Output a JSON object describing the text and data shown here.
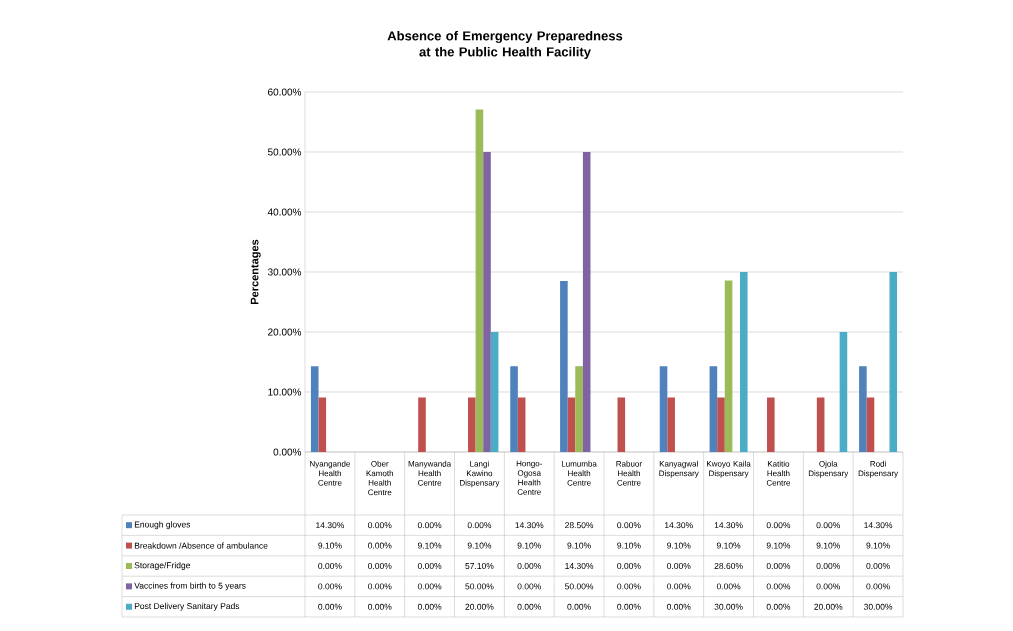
{
  "chart_data": {
    "type": "bar",
    "title": "Absence of Emergency Preparedness at the Public Health Facility",
    "ylabel": "Percentages",
    "categories": [
      "Nyangande Health Centre",
      "Ober Kamoth Health Centre",
      "Manywanda Health Centre",
      "Langi Kawino Dispensary",
      "Hongo-Ogosa Health Centre",
      "Lumumba Health Centre",
      "Rabuor Health Centre",
      "Kanyagwal Dispensary",
      "Kwoyo Kaila Dispensary",
      "Katitio Health Centre",
      "Ojola Dispensary",
      "Rodi Dispensary"
    ],
    "series": [
      {
        "name": "Enough gloves",
        "color": "#4f81bd",
        "values": [
          14.3,
          0,
          0,
          0,
          14.3,
          28.5,
          0,
          14.3,
          14.3,
          0,
          0,
          14.3
        ],
        "value_labels": [
          "14.30%",
          "0.00%",
          "0.00%",
          "0.00%",
          "14.30%",
          "28.50%",
          "0.00%",
          "14.30%",
          "14.30%",
          "0.00%",
          "0.00%",
          "14.30%"
        ]
      },
      {
        "name": "Breakdown /Absence of ambulance",
        "color": "#c0504d",
        "values": [
          9.1,
          0,
          9.1,
          9.1,
          9.1,
          9.1,
          9.1,
          9.1,
          9.1,
          9.1,
          9.1,
          9.1
        ],
        "value_labels": [
          "9.10%",
          "0.00%",
          "9.10%",
          "9.10%",
          "9.10%",
          "9.10%",
          "9.10%",
          "9.10%",
          "9.10%",
          "9.10%",
          "9.10%",
          "9.10%"
        ]
      },
      {
        "name": "Storage/Fridge",
        "color": "#9bbb59",
        "values": [
          0,
          0,
          0,
          57.1,
          0,
          14.3,
          0,
          0,
          28.6,
          0,
          0,
          0
        ],
        "value_labels": [
          "0.00%",
          "0.00%",
          "0.00%",
          "57.10%",
          "0.00%",
          "14.30%",
          "0.00%",
          "0.00%",
          "28.60%",
          "0.00%",
          "0.00%",
          "0.00%"
        ]
      },
      {
        "name": "Vaccines from birth to 5 years",
        "color": "#8064a2",
        "values": [
          0,
          0,
          0,
          50,
          0,
          50,
          0,
          0,
          0,
          0,
          0,
          0
        ],
        "value_labels": [
          "0.00%",
          "0.00%",
          "0.00%",
          "50.00%",
          "0.00%",
          "50.00%",
          "0.00%",
          "0.00%",
          "0.00%",
          "0.00%",
          "0.00%",
          "0.00%"
        ]
      },
      {
        "name": "Post Delivery Sanitary Pads",
        "color": "#4bacc6",
        "values": [
          0,
          0,
          0,
          20,
          0,
          0,
          0,
          0,
          30,
          0,
          20,
          30
        ],
        "value_labels": [
          "0.00%",
          "0.00%",
          "0.00%",
          "20.00%",
          "0.00%",
          "0.00%",
          "0.00%",
          "0.00%",
          "30.00%",
          "0.00%",
          "20.00%",
          "30.00%"
        ]
      }
    ],
    "ylim": [
      0,
      60
    ],
    "yticks": [
      {
        "value": 0,
        "label": "0.00%"
      },
      {
        "value": 10,
        "label": "10.00%"
      },
      {
        "value": 20,
        "label": "20.00%"
      },
      {
        "value": 30,
        "label": "30.00%"
      },
      {
        "value": 40,
        "label": "40.00%"
      },
      {
        "value": 50,
        "label": "50.00%"
      },
      {
        "value": 60,
        "label": "60.00%"
      }
    ],
    "grid": "y",
    "legend": "bottom"
  }
}
